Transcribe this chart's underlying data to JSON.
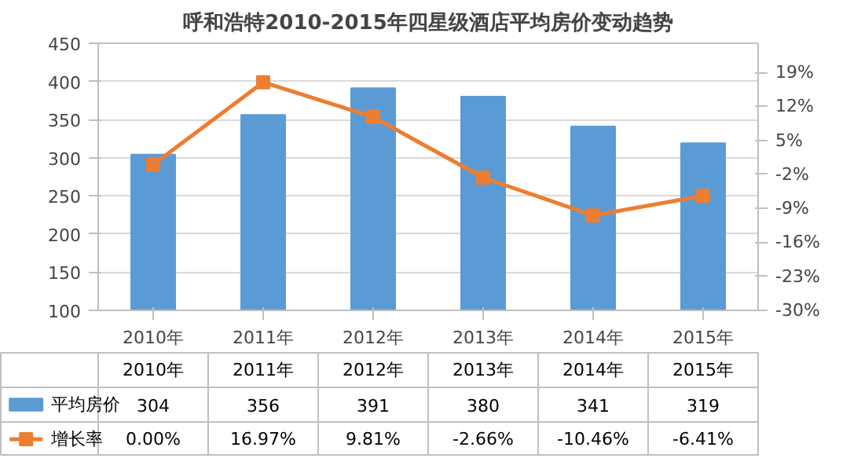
{
  "chart_data": {
    "type": "bar",
    "title": "呼和浩特2010-2015年四星级酒店平均房价变动趋势",
    "categories": [
      "2010年",
      "2011年",
      "2012年",
      "2013年",
      "2014年",
      "2015年"
    ],
    "series": [
      {
        "name": "平均房价",
        "color": "#5b9bd5",
        "values": [
          304,
          356,
          391,
          380,
          341,
          319
        ],
        "value_labels": [
          "304",
          "356",
          "391",
          "380",
          "341",
          "319"
        ]
      },
      {
        "name": "增长率",
        "type": "line",
        "axis": "y2",
        "color": "#ed7d31",
        "marker": "square",
        "values": [
          0.0,
          16.97,
          9.81,
          -2.66,
          -10.46,
          -6.41
        ],
        "value_labels": [
          "0.00%",
          "16.97%",
          "9.81%",
          "-2.66%",
          "-10.46%",
          "-6.41%"
        ]
      }
    ],
    "ylim": [
      100,
      450
    ],
    "yticks": [
      100,
      150,
      200,
      250,
      300,
      350,
      400,
      450
    ],
    "y2lim": [
      -30,
      25
    ],
    "y2ticks": [
      {
        "value": -30,
        "label": "-30%"
      },
      {
        "value": -23,
        "label": "-23%"
      },
      {
        "value": -16,
        "label": "-16%"
      },
      {
        "value": -9,
        "label": "-9%"
      },
      {
        "value": -2,
        "label": "-2%"
      },
      {
        "value": 5,
        "label": "5%"
      },
      {
        "value": 12,
        "label": "12%"
      },
      {
        "value": 19,
        "label": "19%"
      }
    ],
    "grid": "y",
    "legend": "bottom"
  }
}
